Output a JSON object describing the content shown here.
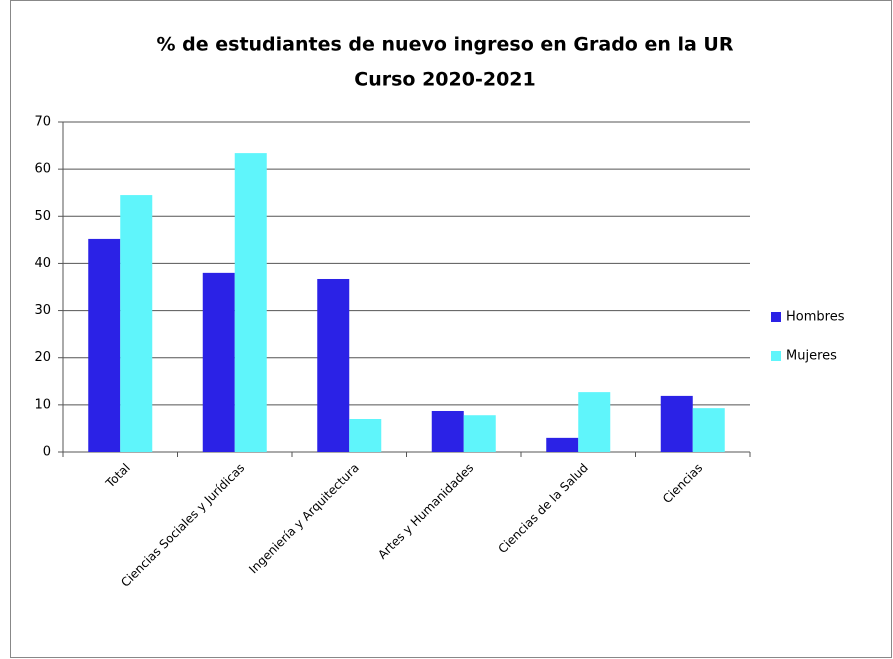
{
  "chart_data": {
    "type": "bar",
    "title": "% de estudiantes de nuevo ingreso en Grado en la UR",
    "subtitle": "Curso 2020-2021",
    "categories": [
      "Total",
      "Ciencias Sociales y Jurídicas",
      "Ingeniería y Arquitectura",
      "Artes y Humanidades",
      "Ciencias de la Salud",
      "Ciencias"
    ],
    "series": [
      {
        "name": "Hombres",
        "color": "#2b22e6",
        "values": [
          45.2,
          38.0,
          36.7,
          8.7,
          3.0,
          11.9
        ]
      },
      {
        "name": "Mujeres",
        "color": "#5ff5fb",
        "values": [
          54.5,
          63.4,
          7.0,
          7.8,
          12.7,
          9.3
        ]
      }
    ],
    "ylim": [
      0,
      70
    ],
    "yticks": [
      0,
      10,
      20,
      30,
      40,
      50,
      60,
      70
    ],
    "grid": true,
    "legend": "right"
  }
}
